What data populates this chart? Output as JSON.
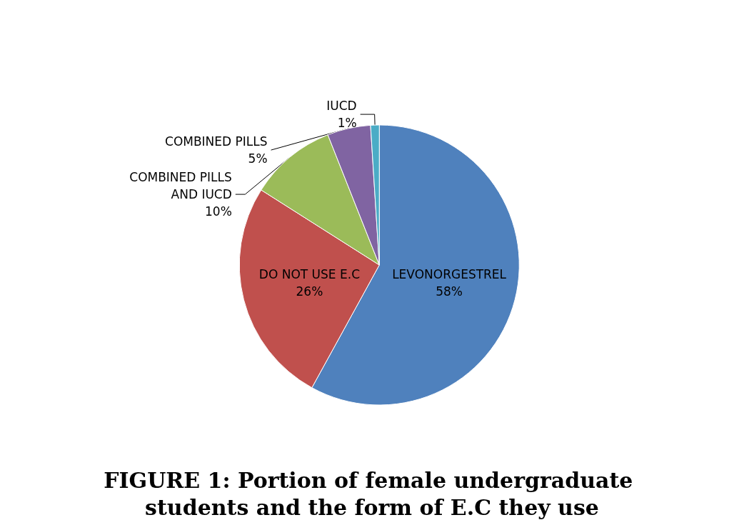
{
  "chart_data": {
    "type": "pie",
    "title": "FIGURE 1: Portion of female undergraduate students and the form of E.C they use",
    "categories": [
      "LEVONORGESTREL",
      "DO NOT USE E.C",
      "COMBINED PILLS AND IUCD",
      "COMBINED PILLS",
      "IUCD"
    ],
    "values": [
      58,
      26,
      10,
      5,
      1
    ],
    "colors": [
      "#4f81bd",
      "#c0504d",
      "#9bbb59",
      "#8064a2",
      "#4bacc6"
    ],
    "value_labels": [
      "58%",
      "26%",
      "10%",
      "5%",
      "1%"
    ],
    "legend": false
  }
}
